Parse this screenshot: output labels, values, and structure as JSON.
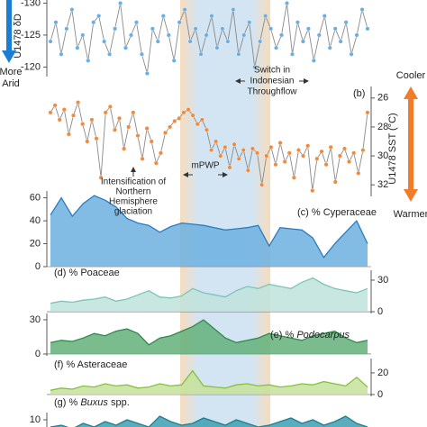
{
  "chart_data": [
    {
      "type": "line",
      "axis_label": "U1478 δD",
      "axis_side": "left",
      "inverted": true,
      "ylim": [
        -130.5,
        -118.5
      ],
      "yticks": [
        -130,
        -125,
        -120
      ],
      "color": "#6aaee6",
      "line_color": "#8a8a8a",
      "values": [
        -124,
        -127,
        -122,
        -126,
        -129,
        -123,
        -125,
        -121,
        -127,
        -128,
        -124,
        -122,
        -126,
        -130,
        -123,
        -125,
        -127,
        -122,
        -119,
        -126,
        -124,
        -128,
        -125,
        -121,
        -127,
        -129,
        -124,
        -126,
        -122,
        -125,
        -128,
        -123,
        -126,
        -124,
        -129,
        -122,
        -125,
        -127,
        -120,
        -124,
        -128,
        -126,
        -123,
        -125,
        -130,
        -122,
        -127,
        -124,
        -126,
        -121,
        -125,
        -128,
        -123,
        -126,
        -124,
        -127,
        -122,
        -125,
        -129,
        -126
      ]
    },
    {
      "type": "line",
      "label": [
        {
          "text": "(b)",
          "italic": false
        }
      ],
      "axis_label": "U1478 SST (°C)",
      "axis_side": "right",
      "inverted": true,
      "ylim": [
        25.2,
        32.8
      ],
      "yticks": [
        26,
        28,
        30,
        32
      ],
      "color": "#f08a3c",
      "line_color": "#8a8a8a",
      "values": [
        27.0,
        26.5,
        27.5,
        26.8,
        28.5,
        27.2,
        26.3,
        27.8,
        29.0,
        27.5,
        28.8,
        31.5,
        27.0,
        26.6,
        28.2,
        27.4,
        29.5,
        28.0,
        27.0,
        28.6,
        30.2,
        28.1,
        29.0,
        30.5,
        29.8,
        28.4,
        28.0,
        27.6,
        27.4,
        27.0,
        26.8,
        27.2,
        27.8,
        27.5,
        28.2,
        29.6,
        29.0,
        30.0,
        29.4,
        30.8,
        29.2,
        30.2,
        29.6,
        31.0,
        29.5,
        29.8,
        32.0,
        30.0,
        29.4,
        30.6,
        29.1,
        30.4,
        29.8,
        31.5,
        29.6,
        30.0,
        29.3,
        32.4,
        30.2,
        29.7,
        30.6,
        29.4,
        31.8,
        30.0,
        29.5,
        30.4,
        29.8,
        31.2,
        29.6,
        27.0
      ]
    },
    {
      "type": "area",
      "label": [
        {
          "text": "(c) % Cyperaceae",
          "italic": false
        }
      ],
      "axis_side": "left",
      "ylim": [
        0,
        66
      ],
      "yticks": [
        0,
        20,
        40,
        60
      ],
      "color": "#6cb0e0",
      "line_color": "#2b7bbf",
      "values": [
        45,
        60,
        44,
        55,
        62,
        58,
        52,
        42,
        38,
        36,
        30,
        35,
        38,
        37,
        36,
        34,
        32,
        33,
        34,
        36,
        18,
        34,
        33,
        32,
        25,
        8,
        20,
        30,
        40,
        20
      ]
    },
    {
      "type": "area",
      "label": [
        {
          "text": "(d) % Poaceae",
          "italic": false
        }
      ],
      "axis_side": "right",
      "ylim": [
        -1.7,
        39.4
      ],
      "yticks": [
        0,
        30
      ],
      "color": "#bfe3dc",
      "line_color": "#7cc4b8",
      "values": [
        8,
        10,
        9,
        11,
        12,
        14,
        10,
        12,
        16,
        20,
        14,
        13,
        15,
        22,
        18,
        16,
        14,
        20,
        24,
        22,
        26,
        24,
        22,
        28,
        32,
        26,
        22,
        20,
        18,
        22
      ]
    },
    {
      "type": "area",
      "label": [
        {
          "text": "(e) % ",
          "italic": false
        },
        {
          "text": "Podocarpus",
          "italic": true
        }
      ],
      "axis_side": "left",
      "ylim": [
        -1.6,
        35.5
      ],
      "yticks": [
        0,
        30
      ],
      "color": "#63b07a",
      "line_color": "#2e8a4a",
      "values": [
        10,
        12,
        11,
        14,
        18,
        16,
        20,
        22,
        18,
        8,
        14,
        16,
        20,
        24,
        30,
        22,
        14,
        10,
        12,
        14,
        18,
        16,
        14,
        12,
        16,
        18,
        20,
        14,
        10,
        12
      ]
    },
    {
      "type": "area",
      "label": [
        {
          "text": "(f) % Asteraceae",
          "italic": false
        }
      ],
      "axis_side": "right",
      "ylim": [
        -1.7,
        33.3
      ],
      "yticks": [
        0,
        20
      ],
      "color": "#c6e29a",
      "line_color": "#86c040",
      "values": [
        4,
        6,
        5,
        8,
        7,
        10,
        8,
        9,
        6,
        7,
        10,
        8,
        9,
        22,
        8,
        7,
        6,
        9,
        10,
        8,
        9,
        7,
        8,
        10,
        9,
        12,
        10,
        8,
        16,
        7
      ]
    },
    {
      "type": "area",
      "label": [
        {
          "text": "(g) % ",
          "italic": false
        },
        {
          "text": "Buxus",
          "italic": true
        },
        {
          "text": " spp.",
          "italic": false
        }
      ],
      "axis_side": "left",
      "ylim": [
        3,
        14
      ],
      "yticks": [
        10
      ],
      "color": "#3d9fb0",
      "line_color": "#1f7d90",
      "values": [
        6,
        7,
        5,
        8,
        6,
        9,
        7,
        10,
        8,
        6,
        12,
        9,
        7,
        8,
        11,
        9,
        7,
        10,
        8,
        6,
        7,
        9,
        11,
        8,
        10,
        7,
        9,
        12,
        8,
        6
      ]
    }
  ],
  "annotations": {
    "switch": [
      "Switch in",
      "Indonesian",
      "Throughflow"
    ],
    "mpwp": "mPWP",
    "nhg": [
      "Intensification of",
      "Northern",
      "Hemisphere",
      "glaciation"
    ]
  },
  "indicators": {
    "arid": [
      "More",
      "Arid"
    ],
    "cooler": "Cooler",
    "warmer": "Warmer"
  }
}
